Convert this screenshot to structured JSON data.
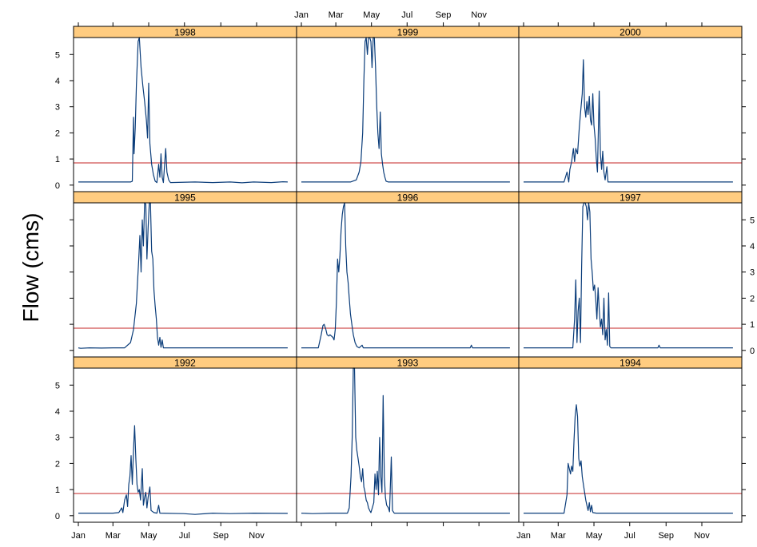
{
  "chart_data": {
    "type": "line",
    "layout": "lattice 3x3 panels",
    "title": "",
    "xlabel": "",
    "ylabel": "Flow (cms)",
    "x_tick_labels": [
      "Jan",
      "Mar",
      "May",
      "Jul",
      "Sep",
      "Nov"
    ],
    "y_tick_labels": [
      "0",
      "1",
      "2",
      "3",
      "4",
      "5"
    ],
    "ylim": [
      -0.25,
      5.65
    ],
    "reference_line": {
      "y": 0.85,
      "color": "#d05050"
    },
    "colors": {
      "series": "#0b3d7a",
      "reference": "#d05050",
      "strip_fill": "#ffcc80"
    },
    "panels": [
      {
        "year": "1998",
        "points": [
          [
            1,
            0.12
          ],
          [
            90,
            0.12
          ],
          [
            93,
            0.15
          ],
          [
            95,
            2.6
          ],
          [
            96,
            1.2
          ],
          [
            98,
            2.2
          ],
          [
            100,
            3.8
          ],
          [
            103,
            5.5
          ],
          [
            105,
            5.8
          ],
          [
            108,
            4.5
          ],
          [
            111,
            3.8
          ],
          [
            114,
            3.2
          ],
          [
            117,
            2.5
          ],
          [
            119,
            1.8
          ],
          [
            121,
            3.9
          ],
          [
            123,
            1.6
          ],
          [
            126,
            0.8
          ],
          [
            129,
            0.4
          ],
          [
            132,
            0.15
          ],
          [
            135,
            0.1
          ],
          [
            138,
            0.8
          ],
          [
            140,
            0.3
          ],
          [
            142,
            1.2
          ],
          [
            144,
            0.3
          ],
          [
            146,
            0.1
          ],
          [
            150,
            1.4
          ],
          [
            152,
            0.5
          ],
          [
            155,
            0.2
          ],
          [
            158,
            0.1
          ],
          [
            200,
            0.12
          ],
          [
            230,
            0.1
          ],
          [
            260,
            0.12
          ],
          [
            280,
            0.09
          ],
          [
            300,
            0.12
          ],
          [
            330,
            0.1
          ],
          [
            350,
            0.13
          ],
          [
            358,
            0.12
          ]
        ]
      },
      {
        "year": "1999",
        "points": [
          [
            1,
            0.12
          ],
          [
            85,
            0.12
          ],
          [
            95,
            0.2
          ],
          [
            100,
            0.5
          ],
          [
            103,
            0.9
          ],
          [
            106,
            2
          ],
          [
            108,
            4
          ],
          [
            110,
            5.5
          ],
          [
            112,
            5.8
          ],
          [
            114,
            5
          ],
          [
            116,
            5.8
          ],
          [
            118,
            5.8
          ],
          [
            120,
            5.5
          ],
          [
            122,
            4.5
          ],
          [
            124,
            5.8
          ],
          [
            126,
            5.8
          ],
          [
            128,
            4.5
          ],
          [
            130,
            3
          ],
          [
            132,
            2
          ],
          [
            134,
            1.4
          ],
          [
            136,
            2.8
          ],
          [
            138,
            1.2
          ],
          [
            140,
            0.8
          ],
          [
            142,
            0.5
          ],
          [
            144,
            0.3
          ],
          [
            146,
            0.15
          ],
          [
            150,
            0.12
          ],
          [
            200,
            0.12
          ],
          [
            300,
            0.12
          ],
          [
            358,
            0.12
          ]
        ]
      },
      {
        "year": "2000",
        "points": [
          [
            1,
            0.12
          ],
          [
            70,
            0.12
          ],
          [
            75,
            0.5
          ],
          [
            78,
            0.12
          ],
          [
            80,
            0.6
          ],
          [
            83,
            0.9
          ],
          [
            86,
            1.4
          ],
          [
            88,
            0.9
          ],
          [
            90,
            1.4
          ],
          [
            93,
            1.2
          ],
          [
            96,
            2.2
          ],
          [
            99,
            3
          ],
          [
            101,
            3.5
          ],
          [
            103,
            4.8
          ],
          [
            105,
            3
          ],
          [
            107,
            2.6
          ],
          [
            109,
            3.2
          ],
          [
            111,
            2.7
          ],
          [
            113,
            3.4
          ],
          [
            115,
            2.5
          ],
          [
            117,
            2.3
          ],
          [
            119,
            3.5
          ],
          [
            121,
            2.3
          ],
          [
            123,
            1.8
          ],
          [
            125,
            1
          ],
          [
            127,
            0.5
          ],
          [
            130,
            3.6
          ],
          [
            132,
            1.2
          ],
          [
            134,
            0.6
          ],
          [
            136,
            1.3
          ],
          [
            138,
            0.5
          ],
          [
            140,
            0.2
          ],
          [
            143,
            0.7
          ],
          [
            145,
            0.12
          ],
          [
            200,
            0.12
          ],
          [
            358,
            0.12
          ]
        ]
      },
      {
        "year": "1995",
        "points": [
          [
            1,
            0.1
          ],
          [
            5,
            0.08
          ],
          [
            20,
            0.1
          ],
          [
            40,
            0.09
          ],
          [
            60,
            0.1
          ],
          [
            80,
            0.1
          ],
          [
            90,
            0.3
          ],
          [
            95,
            0.8
          ],
          [
            100,
            1.8
          ],
          [
            104,
            3.5
          ],
          [
            106,
            4.4
          ],
          [
            108,
            3
          ],
          [
            110,
            5
          ],
          [
            112,
            4
          ],
          [
            114,
            5.8
          ],
          [
            116,
            5.6
          ],
          [
            118,
            3.5
          ],
          [
            120,
            4.7
          ],
          [
            122,
            5.8
          ],
          [
            124,
            5.8
          ],
          [
            126,
            3.8
          ],
          [
            128,
            3.5
          ],
          [
            130,
            2.3
          ],
          [
            132,
            1.7
          ],
          [
            134,
            1.2
          ],
          [
            136,
            0.5
          ],
          [
            138,
            0.2
          ],
          [
            140,
            0.5
          ],
          [
            142,
            0.12
          ],
          [
            144,
            0.4
          ],
          [
            146,
            0.1
          ],
          [
            200,
            0.1
          ],
          [
            358,
            0.1
          ]
        ]
      },
      {
        "year": "1996",
        "points": [
          [
            1,
            0.1
          ],
          [
            30,
            0.1
          ],
          [
            35,
            0.6
          ],
          [
            38,
            0.95
          ],
          [
            40,
            1
          ],
          [
            43,
            0.8
          ],
          [
            45,
            0.6
          ],
          [
            48,
            0.55
          ],
          [
            50,
            0.6
          ],
          [
            55,
            0.5
          ],
          [
            57,
            0.4
          ],
          [
            59,
            0.8
          ],
          [
            61,
            1.8
          ],
          [
            63,
            3.5
          ],
          [
            65,
            3
          ],
          [
            67,
            3.6
          ],
          [
            69,
            4.6
          ],
          [
            71,
            5.2
          ],
          [
            73,
            5.5
          ],
          [
            75,
            5.8
          ],
          [
            77,
            4
          ],
          [
            79,
            3
          ],
          [
            81,
            2.6
          ],
          [
            83,
            2
          ],
          [
            85,
            1.4
          ],
          [
            88,
            0.9
          ],
          [
            90,
            0.6
          ],
          [
            93,
            0.3
          ],
          [
            96,
            0.15
          ],
          [
            100,
            0.1
          ],
          [
            105,
            0.2
          ],
          [
            107,
            0.1
          ],
          [
            200,
            0.1
          ],
          [
            290,
            0.1
          ],
          [
            292,
            0.2
          ],
          [
            294,
            0.1
          ],
          [
            358,
            0.1
          ]
        ]
      },
      {
        "year": "1997",
        "points": [
          [
            1,
            0.1
          ],
          [
            85,
            0.1
          ],
          [
            88,
            1.2
          ],
          [
            90,
            2.7
          ],
          [
            92,
            0.3
          ],
          [
            94,
            1.5
          ],
          [
            96,
            2
          ],
          [
            98,
            0.3
          ],
          [
            100,
            3.2
          ],
          [
            102,
            5.5
          ],
          [
            104,
            5.8
          ],
          [
            106,
            5.8
          ],
          [
            108,
            5.5
          ],
          [
            110,
            5
          ],
          [
            112,
            5.8
          ],
          [
            114,
            5.3
          ],
          [
            116,
            3.5
          ],
          [
            118,
            3
          ],
          [
            120,
            2.3
          ],
          [
            122,
            2.5
          ],
          [
            124,
            2
          ],
          [
            126,
            1.2
          ],
          [
            128,
            2.4
          ],
          [
            130,
            1.6
          ],
          [
            132,
            0.9
          ],
          [
            134,
            1.2
          ],
          [
            136,
            0.6
          ],
          [
            138,
            2
          ],
          [
            140,
            0.4
          ],
          [
            142,
            0.8
          ],
          [
            144,
            0.2
          ],
          [
            146,
            2.2
          ],
          [
            148,
            0.15
          ],
          [
            150,
            0.1
          ],
          [
            200,
            0.1
          ],
          [
            230,
            0.1
          ],
          [
            232,
            0.2
          ],
          [
            234,
            0.1
          ],
          [
            358,
            0.1
          ]
        ]
      },
      {
        "year": "1992",
        "points": [
          [
            1,
            0.1
          ],
          [
            60,
            0.1
          ],
          [
            70,
            0.12
          ],
          [
            75,
            0.3
          ],
          [
            77,
            0.12
          ],
          [
            80,
            0.6
          ],
          [
            83,
            0.8
          ],
          [
            85,
            0.35
          ],
          [
            87,
            1.2
          ],
          [
            89,
            1.5
          ],
          [
            91,
            2.3
          ],
          [
            93,
            1.2
          ],
          [
            95,
            2.5
          ],
          [
            97,
            3.45
          ],
          [
            99,
            2.2
          ],
          [
            101,
            1.2
          ],
          [
            103,
            0.9
          ],
          [
            105,
            1
          ],
          [
            107,
            0.6
          ],
          [
            110,
            1.8
          ],
          [
            112,
            0.4
          ],
          [
            114,
            0.7
          ],
          [
            116,
            0.9
          ],
          [
            118,
            0.3
          ],
          [
            120,
            0.7
          ],
          [
            123,
            1.1
          ],
          [
            125,
            0.2
          ],
          [
            130,
            0.12
          ],
          [
            135,
            0.1
          ],
          [
            138,
            0.4
          ],
          [
            140,
            0.1
          ],
          [
            180,
            0.08
          ],
          [
            200,
            0.05
          ],
          [
            230,
            0.1
          ],
          [
            260,
            0.08
          ],
          [
            300,
            0.1
          ],
          [
            358,
            0.09
          ]
        ]
      },
      {
        "year": "1993",
        "points": [
          [
            1,
            0.1
          ],
          [
            20,
            0.08
          ],
          [
            50,
            0.1
          ],
          [
            80,
            0.1
          ],
          [
            83,
            0.3
          ],
          [
            86,
            1.5
          ],
          [
            88,
            3
          ],
          [
            90,
            5.8
          ],
          [
            92,
            5.8
          ],
          [
            94,
            3
          ],
          [
            96,
            2.5
          ],
          [
            98,
            2.2
          ],
          [
            100,
            1.9
          ],
          [
            102,
            1.5
          ],
          [
            104,
            1.3
          ],
          [
            106,
            1.8
          ],
          [
            108,
            1.1
          ],
          [
            110,
            0.9
          ],
          [
            112,
            0.6
          ],
          [
            114,
            0.5
          ],
          [
            116,
            0.3
          ],
          [
            118,
            0.2
          ],
          [
            120,
            0.12
          ],
          [
            125,
            0.5
          ],
          [
            127,
            1.6
          ],
          [
            129,
            1
          ],
          [
            131,
            1.7
          ],
          [
            133,
            0.8
          ],
          [
            135,
            3
          ],
          [
            137,
            1.5
          ],
          [
            139,
            0.9
          ],
          [
            141,
            4.6
          ],
          [
            143,
            1.5
          ],
          [
            145,
            0.7
          ],
          [
            147,
            0.4
          ],
          [
            150,
            0.3
          ],
          [
            152,
            0.15
          ],
          [
            155,
            2.25
          ],
          [
            157,
            0.2
          ],
          [
            160,
            0.1
          ],
          [
            200,
            0.1
          ],
          [
            358,
            0.1
          ]
        ]
      },
      {
        "year": "1994",
        "points": [
          [
            1,
            0.1
          ],
          [
            70,
            0.1
          ],
          [
            75,
            0.8
          ],
          [
            77,
            2
          ],
          [
            79,
            1.8
          ],
          [
            81,
            1.6
          ],
          [
            83,
            1.9
          ],
          [
            85,
            1.7
          ],
          [
            87,
            2.9
          ],
          [
            89,
            3.8
          ],
          [
            91,
            4.25
          ],
          [
            93,
            3.8
          ],
          [
            95,
            2.2
          ],
          [
            97,
            1.9
          ],
          [
            99,
            2.1
          ],
          [
            101,
            1.5
          ],
          [
            103,
            1.2
          ],
          [
            105,
            0.9
          ],
          [
            107,
            0.6
          ],
          [
            109,
            0.4
          ],
          [
            111,
            0.2
          ],
          [
            113,
            0.5
          ],
          [
            115,
            0.15
          ],
          [
            117,
            0.4
          ],
          [
            119,
            0.12
          ],
          [
            125,
            0.1
          ],
          [
            200,
            0.1
          ],
          [
            358,
            0.1
          ]
        ]
      }
    ]
  }
}
